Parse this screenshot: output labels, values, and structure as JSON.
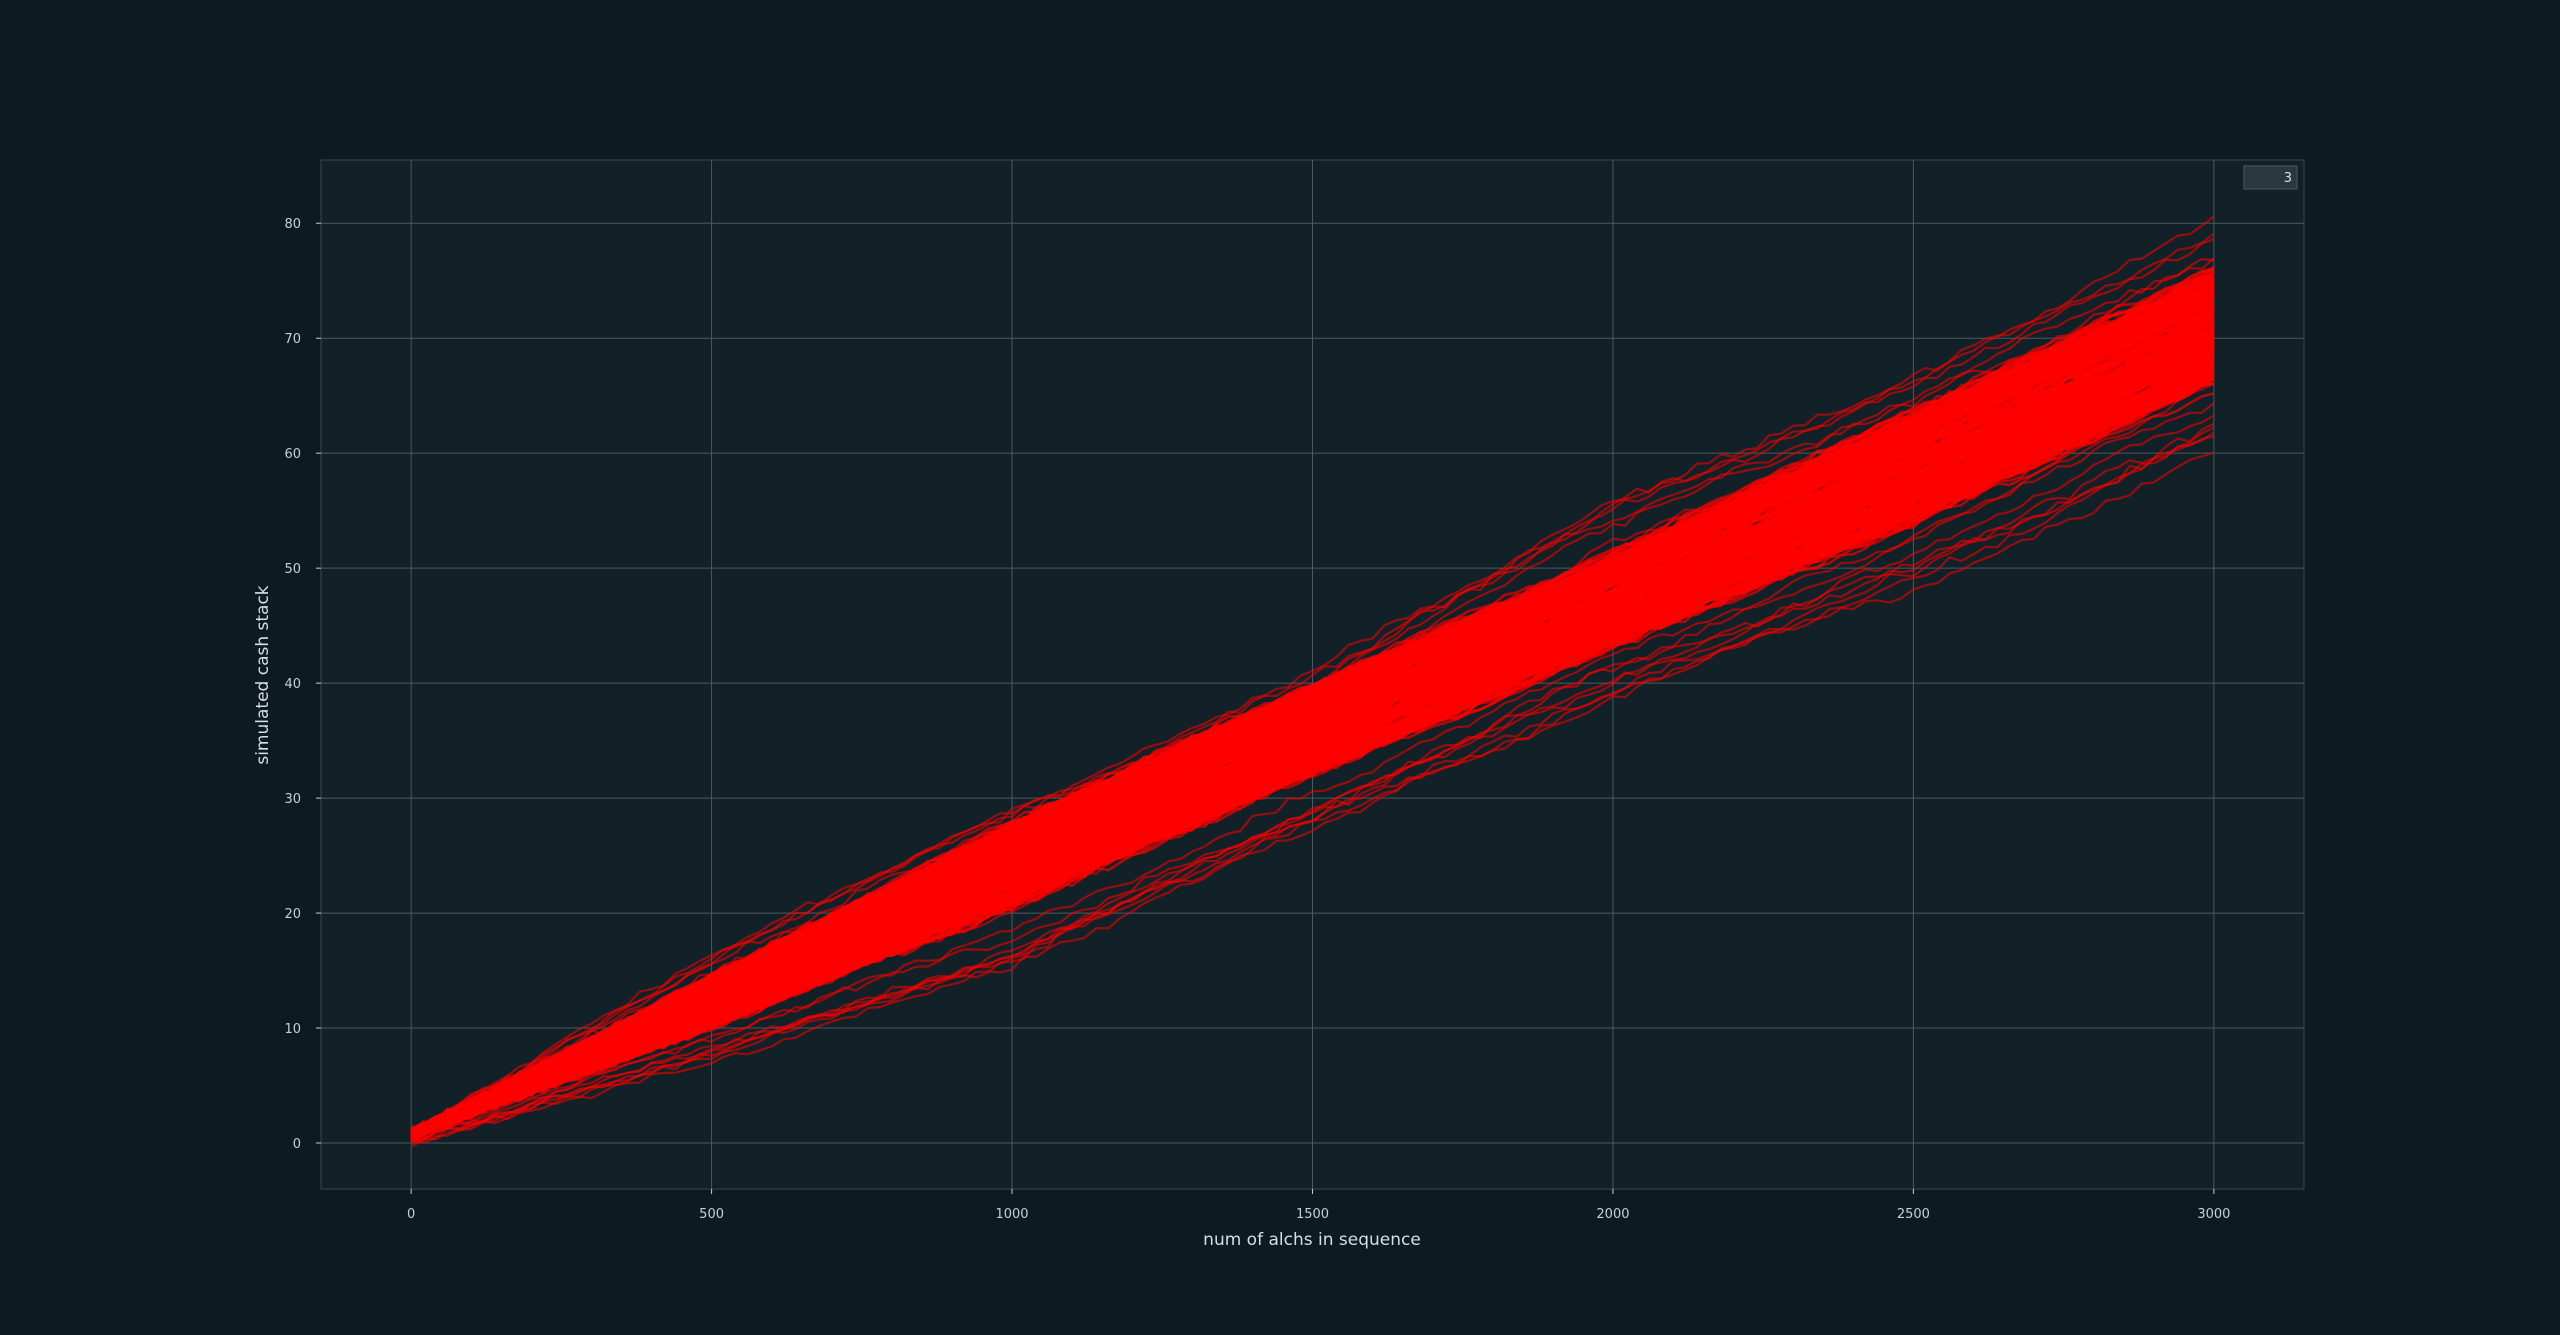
{
  "chart_data": {
    "type": "line",
    "title": "",
    "xlabel": "num of alchs in sequence",
    "ylabel": "simulated cash stack",
    "xlim": [
      -150,
      3150
    ],
    "ylim": [
      -4,
      85.5
    ],
    "xticks": [
      0,
      500,
      1000,
      1500,
      2000,
      2500,
      3000
    ],
    "yticks": [
      0,
      10,
      20,
      30,
      40,
      50,
      60,
      70,
      80
    ],
    "grid": true,
    "legend": {
      "placement": "top-right",
      "entries": [
        "3"
      ]
    },
    "line_color": "#ff0000",
    "background_color": "#0c1a21",
    "plot_background_color": "#122027",
    "grid_color": "#4b5a61",
    "series_count_estimate": 300,
    "envelope": {
      "x": [
        0,
        500,
        1000,
        1500,
        2000,
        2500,
        3000
      ],
      "upper": [
        1,
        17,
        30,
        42,
        57,
        68,
        81
      ],
      "lower": [
        0,
        7,
        15,
        27,
        38,
        48,
        60
      ],
      "core_upper": [
        1,
        15.5,
        29.5,
        41.5,
        53,
        65.5,
        78
      ],
      "core_lower": [
        0.5,
        9,
        19,
        30.5,
        41.5,
        52,
        64
      ]
    }
  }
}
